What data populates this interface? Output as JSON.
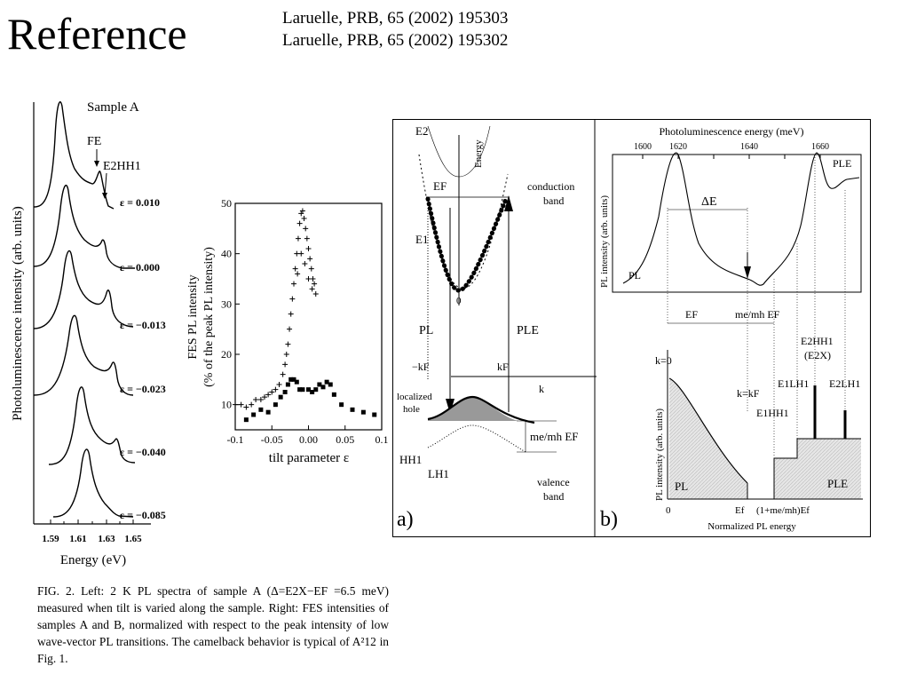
{
  "slide": {
    "title": "Reference",
    "references": [
      "Laruelle, PRB, 65 (2002) 195303",
      "Laruelle, PRB, 65 (2002) 195302"
    ]
  },
  "left_figure": {
    "sample_label": "Sample A",
    "fe_label": "FE",
    "e2hh1_label": "E2HH1",
    "ylabel": "Photoluminescence intensity (arb. units)",
    "xlabel": "Energy (eV)",
    "xticks": [
      "1.59",
      "1.61",
      "1.63",
      "1.65"
    ],
    "curve_labels": [
      "ε = 0.010",
      "ε = 0.000",
      "ε = −0.013",
      "ε = −0.023",
      "ε = −0.040",
      "ε = −0.085"
    ]
  },
  "middle_chart": {
    "ylabel_line1": "FES PL intensity",
    "ylabel_line2": "(% of the peak PL intensity)",
    "xlabel": "tilt parameter ε",
    "xticks": [
      "-0.1",
      "-0.05",
      "0.00",
      "0.05",
      "0.1"
    ],
    "yticks": [
      "10",
      "20",
      "30",
      "40",
      "50"
    ]
  },
  "chart_data": {
    "type": "scatter",
    "xlabel": "tilt parameter ε",
    "ylabel": "FES PL intensity (% of the peak PL intensity)",
    "xlim": [
      -0.1,
      0.1
    ],
    "ylim": [
      5,
      50
    ],
    "series": [
      {
        "marker": "plus",
        "points": [
          [
            -0.1,
            10
          ],
          [
            -0.092,
            10
          ],
          [
            -0.085,
            9.5
          ],
          [
            -0.078,
            10
          ],
          [
            -0.072,
            11
          ],
          [
            -0.065,
            11
          ],
          [
            -0.06,
            11.5
          ],
          [
            -0.055,
            12
          ],
          [
            -0.05,
            12.5
          ],
          [
            -0.045,
            13
          ],
          [
            -0.04,
            14
          ],
          [
            -0.035,
            16
          ],
          [
            -0.032,
            18
          ],
          [
            -0.03,
            20
          ],
          [
            -0.028,
            22
          ],
          [
            -0.026,
            25
          ],
          [
            -0.024,
            28
          ],
          [
            -0.022,
            31
          ],
          [
            -0.02,
            34
          ],
          [
            -0.018,
            37
          ],
          [
            -0.016,
            40
          ],
          [
            -0.014,
            43
          ],
          [
            -0.012,
            46
          ],
          [
            -0.01,
            48
          ],
          [
            -0.008,
            48.5
          ],
          [
            -0.006,
            47
          ],
          [
            -0.004,
            45
          ],
          [
            -0.002,
            43
          ],
          [
            0.0,
            41
          ],
          [
            0.002,
            39
          ],
          [
            0.004,
            37
          ],
          [
            0.006,
            35
          ],
          [
            0.008,
            34
          ],
          [
            0.01,
            32
          ],
          [
            -0.015,
            36
          ],
          [
            -0.005,
            38
          ],
          [
            0.005,
            33
          ],
          [
            -0.01,
            40
          ],
          [
            0.0,
            35
          ]
        ]
      },
      {
        "marker": "square",
        "points": [
          [
            -0.085,
            7
          ],
          [
            -0.075,
            8
          ],
          [
            -0.065,
            9
          ],
          [
            -0.055,
            8.5
          ],
          [
            -0.045,
            10
          ],
          [
            -0.038,
            11.5
          ],
          [
            -0.032,
            12.5
          ],
          [
            -0.028,
            14
          ],
          [
            -0.024,
            15
          ],
          [
            -0.02,
            15
          ],
          [
            -0.016,
            14.5
          ],
          [
            -0.012,
            13
          ],
          [
            -0.008,
            13
          ],
          [
            0.0,
            13
          ],
          [
            0.005,
            12.5
          ],
          [
            0.01,
            13
          ],
          [
            0.015,
            14
          ],
          [
            0.02,
            13.5
          ],
          [
            0.025,
            14.5
          ],
          [
            0.03,
            14
          ],
          [
            0.035,
            12
          ],
          [
            0.045,
            10
          ],
          [
            0.06,
            9
          ],
          [
            0.075,
            8.5
          ],
          [
            0.09,
            8
          ]
        ]
      }
    ]
  },
  "schematic_a": {
    "panel_label": "a)",
    "e2": "E2",
    "energy": "Energy",
    "ef": "EF",
    "e1": "E1",
    "conduction_band": [
      "conduction",
      "band"
    ],
    "zero": "0",
    "pl": "PL",
    "ple": "PLE",
    "minus_kf": "−kF",
    "kf": "kF",
    "k": "k",
    "localized_hole": [
      "localized",
      "hole"
    ],
    "me_mh_ef": "me/mh EF",
    "hh1": "HH1",
    "lh1": "LH1",
    "valence_band": [
      "valence",
      "band"
    ]
  },
  "schematic_b": {
    "panel_label": "b)",
    "top_xlabel": "Photoluminescence energy (meV)",
    "top_xticks": [
      "1600",
      "1620",
      "1640",
      "1660"
    ],
    "top_ylabel": "PL intensity (arb. units)",
    "delta_e": "ΔE",
    "pl": "PL",
    "ple": "PLE",
    "ef": "EF",
    "me_mh_ef": "me/mh EF",
    "e2hh1": "E2HH1",
    "e2x": "(E2X)",
    "e1lh1": "E1LH1",
    "e2lh1": "E2LH1",
    "k0": "k=0",
    "kkf": "k=kF",
    "e1hh1": "E1HH1",
    "bottom_ylabel": "PL intensity (arb. units)",
    "bottom_pl": "PL",
    "bottom_ple": "PLE",
    "xt0": "0",
    "xtef": "Ef",
    "xt2": "(1+me/mh)Ef",
    "bottom_xlabel": "Normalized PL energy"
  },
  "caption": "FIG. 2. Left: 2 K PL spectra of sample A (Δ=E2X−EF =6.5 meV) measured when tilt is varied along the sample. Right: FES intensities of samples A and B, normalized with respect to the peak intensity of low wave-vector PL transitions. The camelback behavior is typical of A²12 in Fig. 1."
}
